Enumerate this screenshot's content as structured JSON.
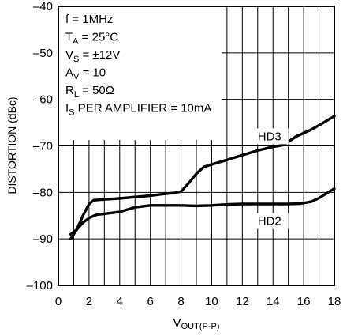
{
  "chart_data": {
    "type": "line",
    "xlabel_main": "V",
    "xlabel_sub": "OUT(P-P)",
    "ylabel": "DISTORTION (dBc)",
    "xlim": [
      0,
      18
    ],
    "ylim": [
      -100,
      -40
    ],
    "xticks": [
      0,
      2,
      4,
      6,
      8,
      10,
      12,
      14,
      16,
      18
    ],
    "yticks": [
      -100,
      -90,
      -80,
      -70,
      -60,
      -50,
      -40
    ],
    "xtick_labels": [
      "0",
      "2",
      "4",
      "6",
      "8",
      "10",
      "12",
      "14",
      "16",
      "18"
    ],
    "ytick_labels": [
      "–100",
      "–90",
      "–80",
      "–70",
      "–60",
      "–50",
      "–40"
    ],
    "grid": true,
    "conditions": [
      {
        "main": "f = 1MHz",
        "sub": "",
        "rest": ""
      },
      {
        "main": "T",
        "sub": "A",
        "rest": " = 25°C"
      },
      {
        "main": "V",
        "sub": "S",
        "rest": " = ±12V"
      },
      {
        "main": "A",
        "sub": "V",
        "rest": " = 10"
      },
      {
        "main": "R",
        "sub": "L",
        "rest": " = 50Ω"
      },
      {
        "main": "I",
        "sub": "S",
        "rest": " PER AMPLIFIER = 10mA"
      }
    ],
    "series": [
      {
        "name": "HD3",
        "x": [
          0.8,
          1.2,
          1.6,
          2.0,
          2.3,
          3.0,
          4.0,
          5.0,
          6.0,
          7.0,
          7.6,
          8.0,
          8.5,
          9.0,
          9.5,
          10.0,
          11.0,
          12.0,
          13.0,
          14.0,
          14.7,
          15.5,
          16.5,
          17.3,
          18.0
        ],
        "y": [
          -90.0,
          -88.0,
          -85.0,
          -82.5,
          -81.7,
          -81.5,
          -81.3,
          -81.0,
          -80.7,
          -80.3,
          -80.1,
          -79.8,
          -78.0,
          -76.0,
          -74.5,
          -74.0,
          -73.0,
          -72.0,
          -71.0,
          -70.2,
          -69.8,
          -68.0,
          -66.5,
          -65.0,
          -63.6
        ]
      },
      {
        "name": "HD2",
        "x": [
          0.8,
          1.2,
          1.6,
          2.0,
          2.5,
          3.0,
          4.0,
          5.0,
          6.0,
          7.0,
          8.0,
          9.0,
          10.0,
          11.0,
          12.0,
          13.0,
          14.0,
          15.0,
          15.8,
          16.5,
          17.0,
          17.5,
          18.0
        ],
        "y": [
          -89.0,
          -88.0,
          -86.5,
          -85.5,
          -84.8,
          -84.6,
          -84.2,
          -83.2,
          -82.8,
          -82.8,
          -82.8,
          -82.9,
          -82.8,
          -82.6,
          -82.5,
          -82.5,
          -82.5,
          -82.5,
          -82.4,
          -82.0,
          -81.2,
          -80.2,
          -79.2
        ]
      }
    ],
    "series_labels": [
      {
        "text": "HD3",
        "x": 13.0,
        "y": -68.8
      },
      {
        "text": "HD2",
        "x": 13.0,
        "y": -87.0
      }
    ]
  }
}
